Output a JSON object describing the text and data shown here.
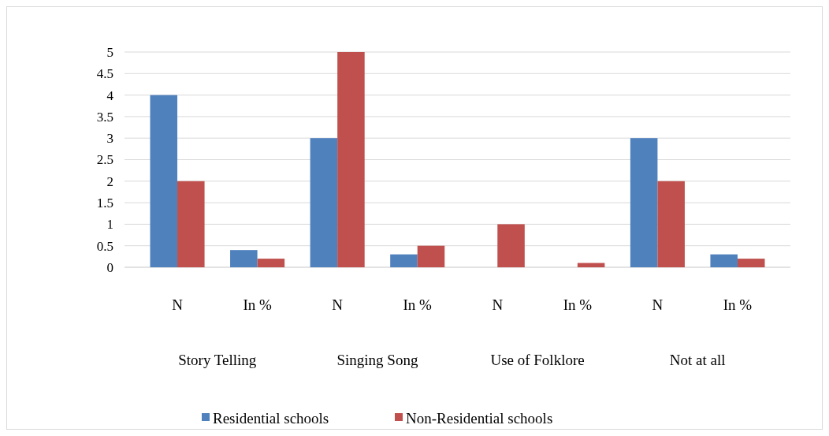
{
  "chart_data": {
    "type": "bar",
    "categories": [
      "N",
      "In %",
      "N",
      "In %",
      "N",
      "In %",
      "N",
      "In %"
    ],
    "series": [
      {
        "name": "Residential schools",
        "color": "#4f81bd",
        "values": [
          4,
          0.4,
          3,
          0.3,
          0,
          0,
          3,
          0.3
        ]
      },
      {
        "name": "Non-Residential schools",
        "color": "#c0504d",
        "values": [
          2,
          0.2,
          5,
          0.5,
          1,
          0.1,
          2,
          0.2
        ]
      }
    ],
    "annotations": [
      "Story Telling",
      "Singing Song",
      "Use of Folklore",
      "Not at all"
    ],
    "ylim": [
      0,
      5
    ],
    "yticks": [
      0,
      0.5,
      1,
      1.5,
      2,
      2.5,
      3,
      3.5,
      4,
      4.5,
      5
    ],
    "grid": "y",
    "legend": "bottom"
  }
}
